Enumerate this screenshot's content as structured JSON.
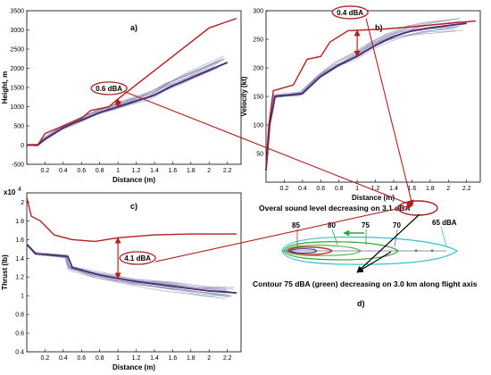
{
  "chart_data": [
    {
      "id": "a",
      "type": "line",
      "panel_label": "a)",
      "xlabel": "Distance  (m)",
      "ylabel": "Height, m",
      "xlim": [
        0,
        2.35
      ],
      "ylim": [
        -500,
        3500
      ],
      "xticks": [
        "0.2",
        "0.4",
        "0.6",
        "0.8",
        "1",
        "1.2",
        "1.4",
        "1.6",
        "1.8",
        "2",
        "2.2"
      ],
      "yticks": [
        "-500",
        "0",
        "500",
        "1000",
        "1500",
        "2000",
        "2500",
        "3000",
        "3500"
      ],
      "upper_bound": [
        [
          0,
          0
        ],
        [
          0.12,
          0
        ],
        [
          0.2,
          300
        ],
        [
          0.6,
          700
        ],
        [
          0.7,
          900
        ],
        [
          0.9,
          1000
        ],
        [
          1.0,
          1200
        ],
        [
          2.0,
          3050
        ],
        [
          2.3,
          3300
        ]
      ],
      "mean": [
        [
          0,
          0
        ],
        [
          0.12,
          0
        ],
        [
          0.2,
          150
        ],
        [
          0.4,
          450
        ],
        [
          0.6,
          650
        ],
        [
          0.8,
          850
        ],
        [
          1.0,
          1000
        ],
        [
          1.2,
          1150
        ],
        [
          1.4,
          1300
        ],
        [
          1.6,
          1550
        ],
        [
          1.8,
          1750
        ],
        [
          2.0,
          1950
        ],
        [
          2.2,
          2150
        ]
      ],
      "annotation": "0.6 dBA"
    },
    {
      "id": "b",
      "type": "line",
      "panel_label": "b)",
      "xlabel": "Distance  (m)",
      "ylabel": "Velocity (kt)",
      "xlim": [
        0,
        2.35
      ],
      "ylim": [
        0,
        300
      ],
      "xticks": [
        "0.2",
        "0.4",
        "0.6",
        "0.8",
        "1",
        "1.2",
        "1.4",
        "1.6",
        "1.8",
        "2",
        "2.2"
      ],
      "yticks": [
        "50",
        "100",
        "150",
        "200",
        "250",
        "300"
      ],
      "upper_bound": [
        [
          0,
          30
        ],
        [
          0.03,
          100
        ],
        [
          0.08,
          160
        ],
        [
          0.3,
          170
        ],
        [
          0.45,
          215
        ],
        [
          0.6,
          220
        ],
        [
          0.7,
          245
        ],
        [
          0.9,
          265
        ],
        [
          1.3,
          268
        ],
        [
          1.6,
          272
        ],
        [
          2.3,
          282
        ]
      ],
      "mean": [
        [
          0,
          20
        ],
        [
          0.04,
          100
        ],
        [
          0.1,
          150
        ],
        [
          0.4,
          155
        ],
        [
          0.6,
          185
        ],
        [
          0.8,
          205
        ],
        [
          1.0,
          220
        ],
        [
          1.2,
          240
        ],
        [
          1.4,
          255
        ],
        [
          1.6,
          265
        ],
        [
          1.8,
          270
        ],
        [
          2.2,
          278
        ]
      ],
      "annotation": "0.4 dBA"
    },
    {
      "id": "c",
      "type": "line",
      "panel_label": "c)",
      "xlabel": "Distance  (m)",
      "ylabel": "Thrust (lb)",
      "exponent_label": "x10",
      "exponent_power": "4",
      "xlim": [
        0,
        2.35
      ],
      "ylim": [
        0.4,
        2.1
      ],
      "xticks": [
        "0.2",
        "0.4",
        "0.6",
        "0.8",
        "1",
        "1.2",
        "1.4",
        "1.6",
        "1.8",
        "2",
        "2.2"
      ],
      "yticks": [
        "0.4",
        "0.6",
        "0.8",
        "1",
        "1.2",
        "1.4",
        "1.6",
        "1.8",
        "2"
      ],
      "upper_bound": [
        [
          0,
          2.05
        ],
        [
          0.05,
          1.85
        ],
        [
          0.15,
          1.8
        ],
        [
          0.3,
          1.65
        ],
        [
          0.5,
          1.6
        ],
        [
          0.75,
          1.58
        ],
        [
          1.0,
          1.62
        ],
        [
          1.4,
          1.65
        ],
        [
          1.8,
          1.66
        ],
        [
          2.3,
          1.66
        ]
      ],
      "mean": [
        [
          0,
          1.55
        ],
        [
          0.1,
          1.45
        ],
        [
          0.45,
          1.42
        ],
        [
          0.5,
          1.3
        ],
        [
          0.8,
          1.22
        ],
        [
          1.2,
          1.15
        ],
        [
          1.6,
          1.1
        ],
        [
          2.0,
          1.05
        ],
        [
          2.3,
          1.03
        ]
      ],
      "annotation": "4.1 dBA"
    }
  ],
  "contour_panel": {
    "panel_label": "d)",
    "title": "Overal sound level decreasing on 3.1 dBA",
    "levels": [
      "85",
      "80",
      "75",
      "70",
      "65 dBA"
    ],
    "caption": "Contour 75 dBA (green) decreasing on 3.0 km along flight axis"
  },
  "colors": {
    "bound": "#b0201e",
    "mean": "#2a2a8a",
    "family": "#8a8fb4",
    "contour_cyan": "#31c3c9",
    "contour_green": "#33a533",
    "contour_red": "#c0302a"
  }
}
